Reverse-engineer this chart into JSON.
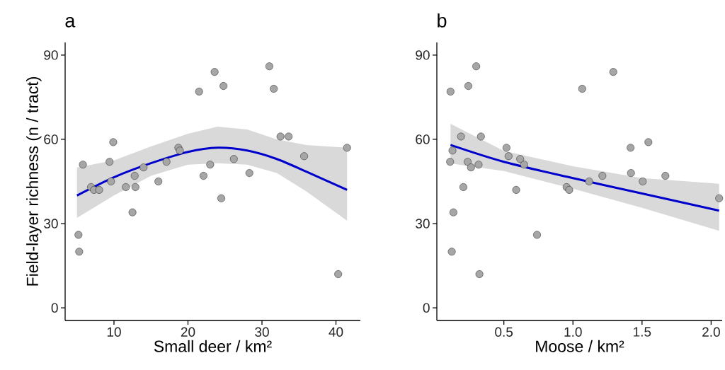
{
  "chart_data": [
    {
      "type": "scatter",
      "title": "a",
      "xlabel": "Small deer / km²",
      "ylabel": "Field-layer richness (n / tract)",
      "xlim": [
        3.4,
        43.3
      ],
      "ylim": [
        -4.5,
        94.5
      ],
      "xticks": [
        10,
        20,
        30,
        40
      ],
      "yticks": [
        0,
        30,
        60,
        90
      ],
      "grid": false,
      "series": [
        {
          "marker": "circle",
          "color": "#a6a6a6",
          "x": [
            5.2,
            5.3,
            5.8,
            6.9,
            7.3,
            8,
            9.4,
            9.6,
            9.9,
            11.6,
            12.5,
            12.8,
            12.9,
            14,
            16,
            17.1,
            18.7,
            18.9,
            21.5,
            22.1,
            23,
            23.6,
            24.5,
            24.8,
            26.2,
            28.3,
            31,
            31.6,
            32.5,
            33.6,
            35.7,
            40.3,
            41.5
          ],
          "values": [
            26,
            20,
            51,
            43,
            42,
            42,
            52,
            45,
            59,
            43,
            34,
            47,
            43,
            50,
            45,
            52,
            57,
            56,
            77,
            47,
            51,
            84,
            39,
            79,
            53,
            48,
            86,
            78,
            61,
            61,
            54,
            12,
            57
          ]
        },
        {
          "type": "line",
          "color": "#0000cc",
          "x": [
            5,
            10,
            15,
            20,
            24,
            28,
            32,
            36,
            41.5
          ],
          "values": [
            40,
            46.5,
            51.5,
            55.5,
            57,
            56,
            53,
            48.5,
            42
          ],
          "lower": [
            32,
            40,
            47,
            51,
            51.5,
            51,
            48,
            41.5,
            31
          ],
          "upper": [
            50,
            52.5,
            57.5,
            62,
            64.5,
            63.5,
            60,
            58,
            57
          ]
        }
      ]
    },
    {
      "type": "scatter",
      "title": "b",
      "xlabel": "Moose / km²",
      "xlim": [
        0.015,
        2.08
      ],
      "ylim": [
        -4.5,
        94.5
      ],
      "xticks": [
        {
          "value": 0.5,
          "label": "0.5"
        },
        {
          "value": 1,
          "label": "1.0"
        },
        {
          "value": 1.5,
          "label": "1.5"
        },
        {
          "value": 2,
          "label": "2.0"
        }
      ],
      "yticks": [
        0,
        30,
        60,
        90
      ],
      "grid": false,
      "series": [
        {
          "marker": "circle",
          "color": "#a6a6a6",
          "x": [
            0.114,
            0.3,
            0.243,
            0.19,
            0.334,
            0.128,
            0.111,
            0.238,
            0.262,
            0.317,
            0.207,
            0.135,
            0.123,
            0.323,
            0.519,
            0.534,
            0.618,
            0.647,
            0.589,
            0.74,
            0.954,
            0.973,
            1.067,
            1.117,
            1.213,
            1.292,
            1.417,
            1.42,
            1.505,
            1.546,
            1.669,
            2.058
          ],
          "values": [
            77,
            86,
            79,
            61,
            61,
            56,
            52,
            52,
            50,
            51,
            43,
            34,
            20,
            12,
            57,
            54,
            53,
            51,
            42,
            26,
            43,
            42,
            78,
            45,
            47,
            84,
            57,
            48,
            45,
            59,
            47,
            39
          ]
        },
        {
          "type": "line",
          "color": "#0000cc",
          "x": [
            0.114,
            0.5,
            1,
            1.5,
            2.058
          ],
          "values": [
            58,
            52,
            46.2,
            40.7,
            34.6
          ],
          "lower": [
            51.4,
            48.7,
            42.4,
            35.6,
            27.4
          ],
          "upper": [
            65.5,
            55.9,
            50.4,
            46.2,
            44.2
          ]
        }
      ]
    }
  ]
}
